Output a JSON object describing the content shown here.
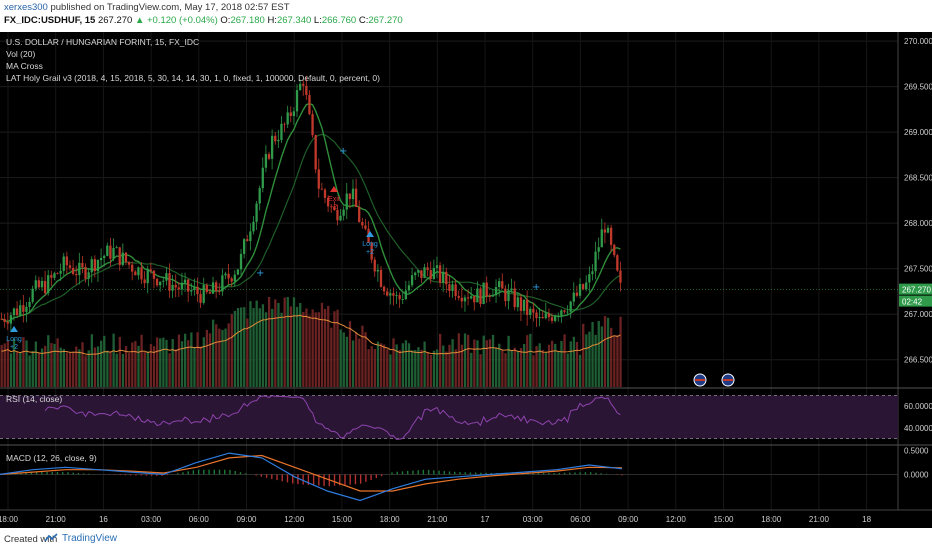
{
  "header": {
    "user": "xerxes300",
    "published": "published on TradingView.com, May 17, 2018 02:57 EST",
    "symbol": "FX_IDC:USDHUF, 15",
    "last": "267.270",
    "change": "+0.120 (+0.04%)",
    "o_label": "O:",
    "o": "267.180",
    "h_label": "H:",
    "h": "267.340",
    "l_label": "L:",
    "l": "266.760",
    "c_label": "C:",
    "c": "267.270"
  },
  "legend": {
    "title": "U.S. DOLLAR / HUNGARIAN FORINT, 15, FX_IDC",
    "vol": "Vol (20)",
    "ma": "MA Cross",
    "strategy": "LAT Holy Grail v3 (2018, 4, 15, 2018, 5, 30, 14, 14, 30, 1, 0, fixed, 1, 100000, Default, 0, percent, 0)",
    "rsi": "RSI (14, close)",
    "macd": "MACD (12, 26, close, 9)"
  },
  "price_scale": {
    "labels": [
      "270.000",
      "269.500",
      "269.000",
      "268.500",
      "268.000",
      "267.500",
      "267.000",
      "266.500"
    ],
    "current_price_tag": "267.270",
    "countdown_tag": "02:42"
  },
  "rsi_scale": {
    "labels": [
      "60.0000",
      "40.0000"
    ]
  },
  "macd_scale": {
    "labels": [
      "0.5000",
      "0.0000"
    ]
  },
  "time_axis": {
    "labels": [
      "18:00",
      "21:00",
      "16",
      "03:00",
      "06:00",
      "09:00",
      "12:00",
      "15:00",
      "18:00",
      "21:00",
      "17",
      "03:00",
      "06:00",
      "09:00",
      "12:00",
      "15:00",
      "18:00",
      "21:00",
      "18"
    ]
  },
  "trade_markers": [
    {
      "label": "Long",
      "qty": "+2"
    },
    {
      "label": "Exit",
      "qty": "-2"
    },
    {
      "label": "Long",
      "qty": "+2"
    }
  ],
  "footer": {
    "created": "Created with",
    "brand": "TradingView"
  },
  "colors": {
    "background": "#000000",
    "up_candle": "#2e9a4a",
    "down_candle": "#c0392b",
    "ma_fast": "#2f8f3a",
    "ma_slow": "#1e5e28",
    "vol_ma": "#e08a3a",
    "rsi_line": "#8e44ad",
    "macd_line": "#2f7de0",
    "signal_line": "#e8742a"
  },
  "chart_data": [
    {
      "type": "candlestick",
      "title": "U.S. DOLLAR / HUNGARIAN FORINT, 15, FX_IDC",
      "ylim": [
        266.2,
        270.1
      ],
      "x_labels": [
        "18:00",
        "21:00",
        "16",
        "03:00",
        "06:00",
        "09:00",
        "12:00",
        "15:00",
        "18:00",
        "21:00",
        "17",
        "03:00",
        "06:00",
        "09:00"
      ],
      "close_path": [
        266.95,
        267.05,
        267.25,
        267.35,
        267.55,
        267.45,
        267.6,
        267.7,
        267.55,
        267.45,
        267.4,
        267.3,
        267.25,
        267.2,
        267.35,
        267.55,
        268.2,
        268.9,
        269.1,
        269.6,
        268.4,
        268.1,
        268.35,
        267.8,
        267.35,
        267.15,
        267.4,
        267.5,
        267.35,
        267.25,
        267.2,
        267.3,
        267.2,
        267.05,
        266.9,
        267.05,
        267.15,
        267.35,
        268.0,
        267.27
      ]
    },
    {
      "type": "line",
      "title": "RSI (14, close)",
      "ylim": [
        25,
        75
      ],
      "bands": [
        70,
        30
      ],
      "ticks": [
        60,
        40
      ]
    },
    {
      "type": "line",
      "title": "MACD (12, 26, close, 9)",
      "ylim": [
        -0.75,
        0.6
      ],
      "ticks": [
        0.5,
        0.0
      ],
      "series": [
        {
          "name": "MACD",
          "values": [
            0.0,
            0.1,
            0.15,
            0.1,
            0.05,
            0.0,
            0.25,
            0.45,
            0.35,
            -0.05,
            -0.35,
            -0.55,
            -0.3,
            -0.1,
            -0.05,
            0.0,
            0.05,
            0.1,
            0.2,
            0.12
          ]
        },
        {
          "name": "Signal",
          "values": [
            0.0,
            0.05,
            0.1,
            0.1,
            0.07,
            0.03,
            0.15,
            0.35,
            0.4,
            0.15,
            -0.1,
            -0.35,
            -0.35,
            -0.2,
            -0.1,
            -0.03,
            0.02,
            0.07,
            0.15,
            0.14
          ]
        }
      ]
    }
  ]
}
